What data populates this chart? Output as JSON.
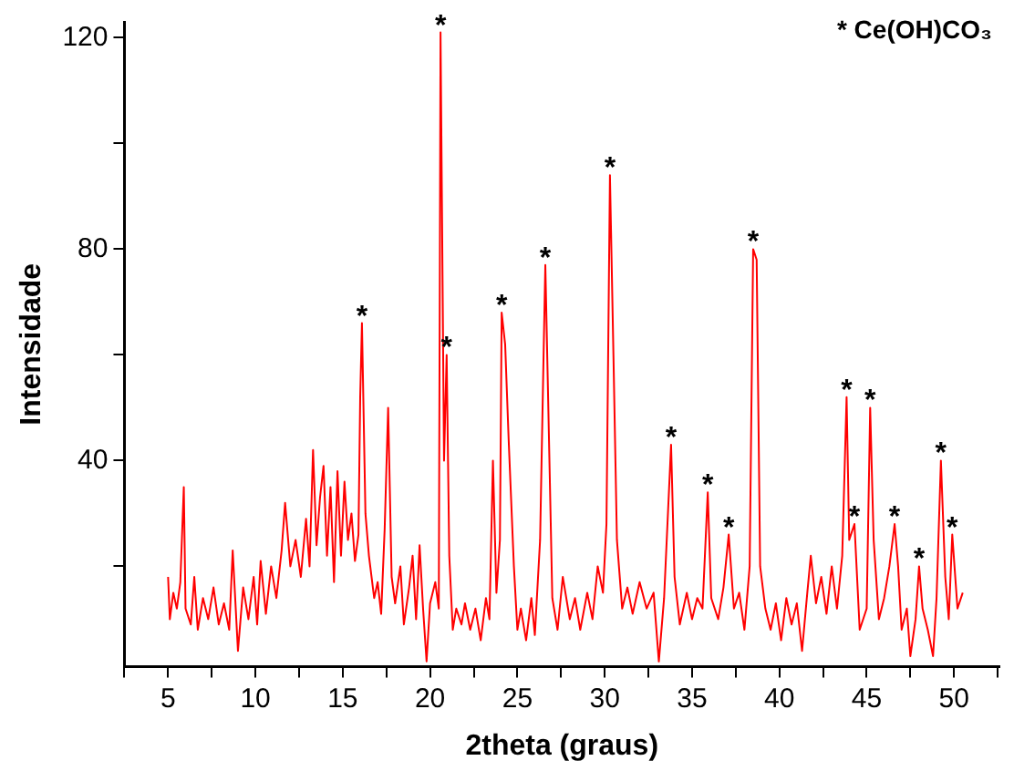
{
  "chart_data": {
    "type": "line",
    "xlabel": "2theta (graus)",
    "ylabel": "Intensidade",
    "xlim": [
      2.5,
      52.6
    ],
    "ylim": [
      1,
      123
    ],
    "xticks": [
      {
        "value": 2.5,
        "label": null
      },
      5,
      {
        "value": 7.5,
        "label": null
      },
      10,
      {
        "value": 12.5,
        "label": null
      },
      15,
      {
        "value": 17.5,
        "label": null
      },
      20,
      {
        "value": 22.5,
        "label": null
      },
      25,
      {
        "value": 27.5,
        "label": null
      },
      30,
      {
        "value": 32.5,
        "label": null
      },
      35,
      {
        "value": 37.5,
        "label": null
      },
      40,
      {
        "value": 42.5,
        "label": null
      },
      45,
      {
        "value": 47.5,
        "label": null
      },
      50,
      {
        "value": 52.5,
        "label": null
      }
    ],
    "yticks": [
      {
        "value": 20,
        "label": null
      },
      40,
      {
        "value": 60,
        "label": null
      },
      80,
      {
        "value": 100,
        "label": null
      },
      120
    ],
    "grid": false,
    "legend": false,
    "marker": "none",
    "line_style": "solid",
    "series": [
      {
        "color": "#ff0000",
        "x": [
          5.0,
          5.1,
          5.3,
          5.5,
          5.7,
          5.9,
          6.0,
          6.3,
          6.5,
          6.7,
          7.0,
          7.3,
          7.6,
          7.9,
          8.2,
          8.5,
          8.7,
          9.0,
          9.3,
          9.6,
          9.9,
          10.1,
          10.3,
          10.6,
          10.9,
          11.2,
          11.5,
          11.7,
          12.0,
          12.3,
          12.6,
          12.9,
          13.1,
          13.3,
          13.5,
          13.7,
          13.9,
          14.1,
          14.3,
          14.5,
          14.7,
          14.9,
          15.1,
          15.3,
          15.5,
          15.7,
          15.9,
          16.0,
          16.1,
          16.3,
          16.5,
          16.8,
          17.0,
          17.2,
          17.4,
          17.6,
          17.8,
          18.0,
          18.3,
          18.5,
          18.8,
          19.0,
          19.2,
          19.4,
          19.6,
          19.8,
          20.0,
          20.3,
          20.5,
          20.6,
          20.8,
          20.95,
          21.1,
          21.3,
          21.5,
          21.8,
          22.0,
          22.3,
          22.6,
          22.9,
          23.2,
          23.4,
          23.6,
          23.8,
          24.0,
          24.1,
          24.3,
          24.5,
          24.8,
          25.0,
          25.2,
          25.5,
          25.8,
          26.0,
          26.3,
          26.5,
          26.6,
          27.0,
          27.3,
          27.6,
          28.0,
          28.3,
          28.6,
          29.0,
          29.3,
          29.6,
          29.9,
          30.1,
          30.3,
          30.5,
          30.7,
          31.0,
          31.3,
          31.6,
          32.0,
          32.4,
          32.8,
          33.1,
          33.4,
          33.8,
          34.0,
          34.3,
          34.7,
          35.0,
          35.3,
          35.6,
          35.9,
          36.1,
          36.5,
          36.8,
          37.1,
          37.4,
          37.7,
          38.0,
          38.3,
          38.5,
          38.7,
          38.9,
          39.2,
          39.5,
          39.8,
          40.1,
          40.4,
          40.7,
          41.0,
          41.3,
          41.6,
          41.8,
          42.1,
          42.4,
          42.7,
          43.0,
          43.3,
          43.6,
          43.85,
          44.0,
          44.3,
          44.6,
          45.0,
          45.2,
          45.4,
          45.7,
          46.0,
          46.3,
          46.6,
          46.8,
          47.0,
          47.3,
          47.5,
          47.8,
          48.0,
          48.2,
          48.5,
          48.8,
          49.0,
          49.25,
          49.5,
          49.7,
          49.9,
          50.2,
          50.5
        ],
        "values": [
          18,
          10,
          15,
          12,
          17,
          35,
          12,
          9,
          18,
          8,
          14,
          10,
          16,
          9,
          13,
          8,
          23,
          4,
          16,
          10,
          18,
          9,
          21,
          11,
          20,
          14,
          23,
          32,
          20,
          25,
          18,
          29,
          20,
          42,
          24,
          33,
          39,
          22,
          35,
          17,
          38,
          22,
          36,
          25,
          30,
          21,
          26,
          52,
          66,
          30,
          22,
          14,
          17,
          11,
          27,
          50,
          18,
          13,
          20,
          9,
          16,
          22,
          10,
          24,
          12,
          2,
          13,
          17,
          12,
          121,
          40,
          60,
          22,
          8,
          12,
          9,
          13,
          8,
          12,
          6,
          14,
          10,
          40,
          15,
          25,
          68,
          62,
          44,
          20,
          8,
          12,
          6,
          14,
          7,
          25,
          60,
          77,
          14,
          8,
          18,
          10,
          14,
          8,
          15,
          10,
          20,
          15,
          28,
          94,
          60,
          25,
          12,
          16,
          11,
          17,
          12,
          15,
          2,
          14,
          43,
          18,
          9,
          15,
          10,
          14,
          12,
          34,
          14,
          10,
          16,
          26,
          12,
          15,
          8,
          20,
          80,
          78,
          20,
          12,
          8,
          13,
          6,
          14,
          9,
          13,
          4,
          15,
          22,
          13,
          18,
          11,
          20,
          12,
          22,
          52,
          25,
          28,
          8,
          12,
          50,
          25,
          10,
          14,
          20,
          28,
          20,
          8,
          12,
          3,
          10,
          20,
          12,
          8,
          3,
          14,
          40,
          18,
          10,
          26,
          12,
          15
        ]
      }
    ],
    "annotations": [
      "* Ce(OH)CO₃",
      {
        "text": "*",
        "x": 16.1,
        "y": 66
      },
      {
        "text": "*",
        "x": 20.6,
        "y": 121
      },
      {
        "text": "*",
        "x": 20.95,
        "y": 60
      },
      {
        "text": "*",
        "x": 24.1,
        "y": 68
      },
      {
        "text": "*",
        "x": 26.6,
        "y": 77
      },
      {
        "text": "*",
        "x": 30.3,
        "y": 94
      },
      {
        "text": "*",
        "x": 33.8,
        "y": 43
      },
      {
        "text": "*",
        "x": 35.9,
        "y": 34
      },
      {
        "text": "*",
        "x": 37.1,
        "y": 26
      },
      {
        "text": "*",
        "x": 38.5,
        "y": 80
      },
      {
        "text": "*",
        "x": 43.85,
        "y": 52
      },
      {
        "text": "*",
        "x": 44.3,
        "y": 28
      },
      {
        "text": "*",
        "x": 45.2,
        "y": 50
      },
      {
        "text": "*",
        "x": 46.6,
        "y": 28
      },
      {
        "text": "*",
        "x": 48.0,
        "y": 20
      },
      {
        "text": "*",
        "x": 49.25,
        "y": 40
      },
      {
        "text": "*",
        "x": 49.9,
        "y": 26
      }
    ]
  }
}
